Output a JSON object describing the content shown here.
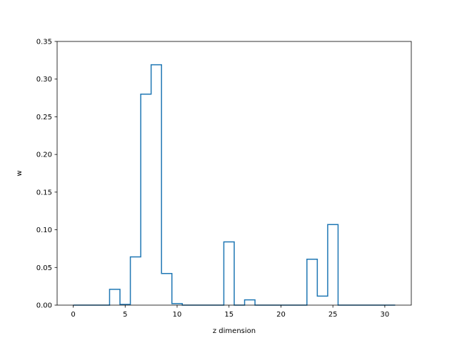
{
  "chart_data": {
    "type": "line",
    "style": "step",
    "xlabel": "z dimension",
    "ylabel": "w",
    "xlim": [
      -1.55,
      32.55
    ],
    "ylim": [
      0,
      0.35
    ],
    "grid": false,
    "line_color": "#1f77b4",
    "x_ticks": [
      0,
      5,
      10,
      15,
      20,
      25,
      30
    ],
    "x_tick_labels": [
      "0",
      "5",
      "10",
      "15",
      "20",
      "25",
      "30"
    ],
    "y_ticks": [
      0.0,
      0.05,
      0.1,
      0.15,
      0.2,
      0.25,
      0.3,
      0.35
    ],
    "y_tick_labels": [
      "0.00",
      "0.05",
      "0.10",
      "0.15",
      "0.20",
      "0.25",
      "0.30",
      "0.35"
    ],
    "x": [
      0,
      1,
      2,
      3,
      4,
      5,
      6,
      7,
      8,
      9,
      10,
      11,
      12,
      13,
      14,
      15,
      16,
      17,
      18,
      19,
      20,
      21,
      22,
      23,
      24,
      25,
      26,
      27,
      28,
      29,
      30,
      31
    ],
    "values": [
      0,
      0,
      0,
      0,
      0.021,
      0.001,
      0.064,
      0.28,
      0.319,
      0.042,
      0.002,
      0,
      0,
      0,
      0,
      0.084,
      0,
      0.007,
      0,
      0,
      0,
      0,
      0,
      0.061,
      0.012,
      0.107,
      0,
      0,
      0,
      0,
      0,
      0
    ]
  }
}
